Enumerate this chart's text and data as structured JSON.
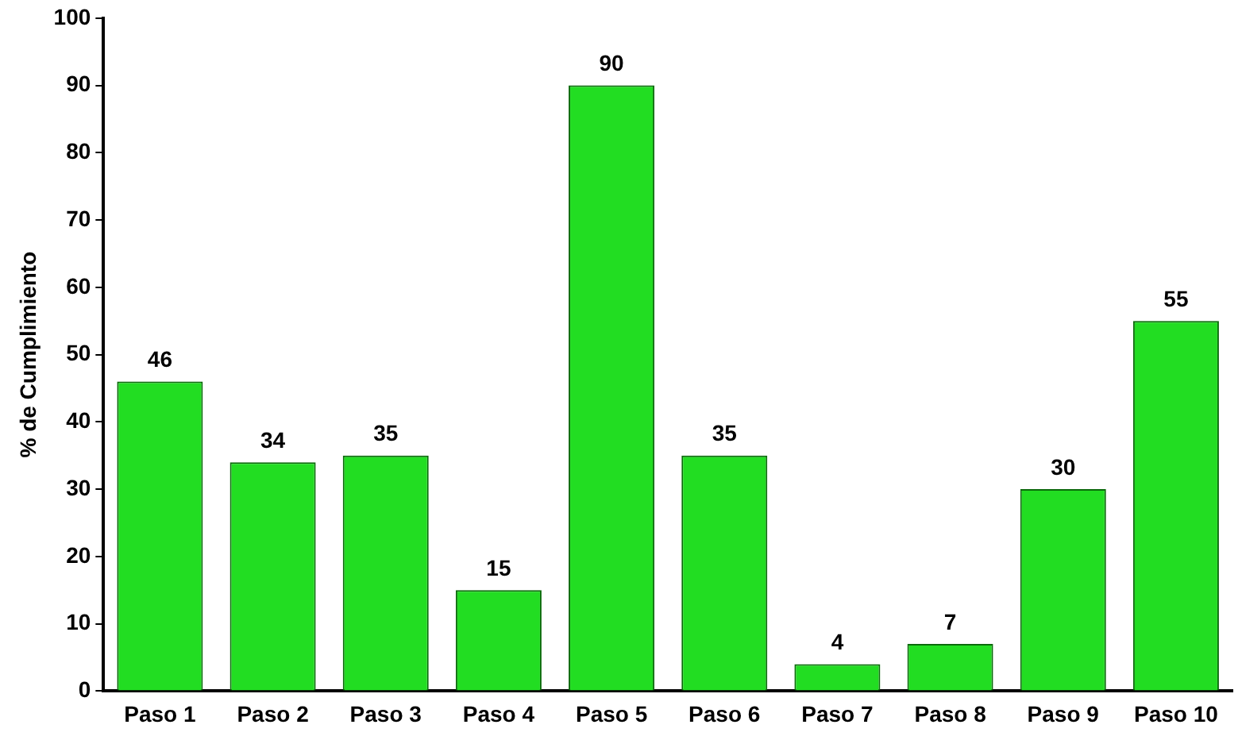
{
  "chart_data": {
    "type": "bar",
    "ylabel": "% de Cumplimiento",
    "categories": [
      "Paso 1",
      "Paso 2",
      "Paso 3",
      "Paso 4",
      "Paso 5",
      "Paso 6",
      "Paso 7",
      "Paso 8",
      "Paso 9",
      "Paso 10"
    ],
    "values": [
      46,
      34,
      35,
      15,
      90,
      35,
      4,
      7,
      30,
      55
    ],
    "color": "#22dd22",
    "ylim": [
      0,
      100
    ],
    "yticks": [
      0,
      10,
      20,
      30,
      40,
      50,
      60,
      70,
      80,
      90,
      100
    ],
    "grid": false,
    "legend": false,
    "data_labels": true
  }
}
